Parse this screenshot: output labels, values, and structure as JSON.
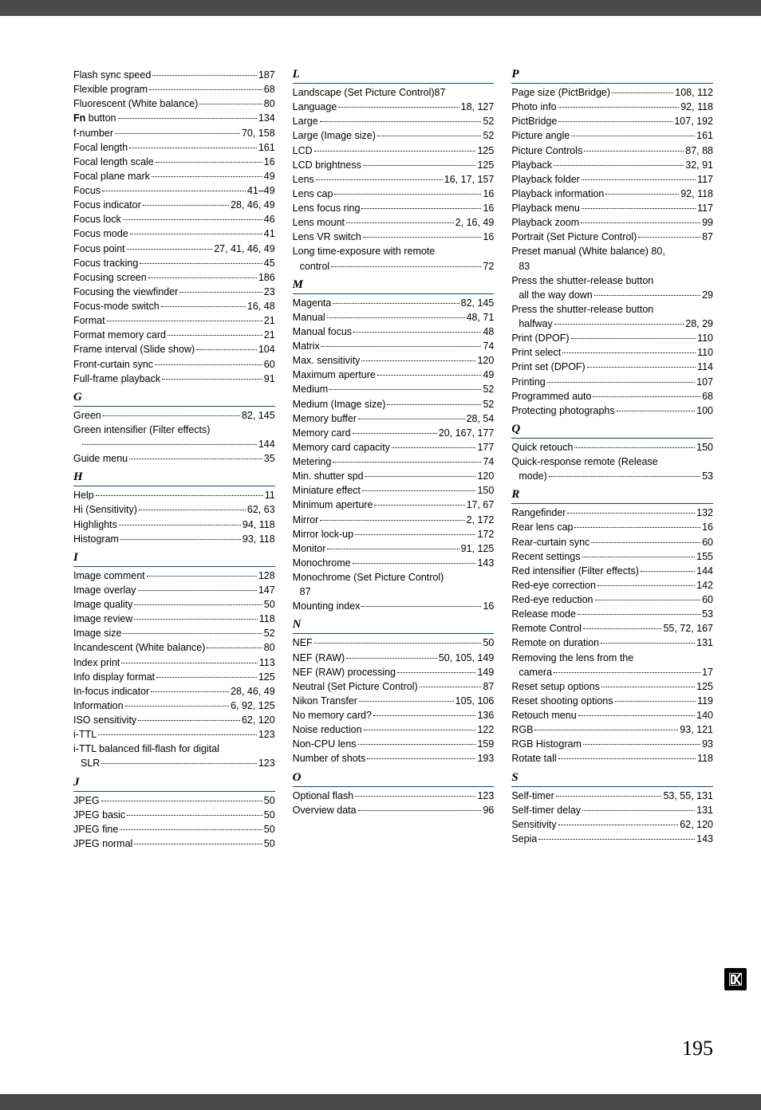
{
  "page_number": "195",
  "columns": [
    {
      "groups": [
        {
          "header": null,
          "entries": [
            {
              "l": "Flash sync speed",
              "p": "187"
            },
            {
              "l": "Flexible program",
              "p": "68"
            },
            {
              "l": "Fluorescent (White balance)",
              "p": "80"
            },
            {
              "l": "Fn button",
              "p": "134",
              "bold": "Fn"
            },
            {
              "l": "f-number",
              "p": "70, 158"
            },
            {
              "l": "Focal length",
              "p": "161"
            },
            {
              "l": "Focal length scale",
              "p": "16"
            },
            {
              "l": "Focal plane mark",
              "p": "49"
            },
            {
              "l": "Focus",
              "p": "41–49"
            },
            {
              "l": "Focus indicator",
              "p": "28, 46, 49"
            },
            {
              "l": "Focus lock",
              "p": "46"
            },
            {
              "l": "Focus mode",
              "p": "41"
            },
            {
              "l": "Focus point",
              "p": "27, 41, 46, 49"
            },
            {
              "l": "Focus tracking",
              "p": "45"
            },
            {
              "l": "Focusing screen",
              "p": "186"
            },
            {
              "l": "Focusing the viewfinder",
              "p": "23"
            },
            {
              "l": "Focus-mode switch",
              "p": "16, 48"
            },
            {
              "l": "Format",
              "p": "21"
            },
            {
              "l": "Format memory card",
              "p": "21"
            },
            {
              "l": "Frame interval (Slide show)",
              "p": "104"
            },
            {
              "l": "Front-curtain sync",
              "p": "60"
            },
            {
              "l": "Full-frame playback",
              "p": "91"
            }
          ]
        },
        {
          "header": "G",
          "entries": [
            {
              "l": "Green",
              "p": "82, 145"
            },
            {
              "l": "Green intensifier (Filter effects)",
              "p": "144",
              "wrap": true
            },
            {
              "l": "Guide menu",
              "p": "35"
            }
          ]
        },
        {
          "header": "H",
          "entries": [
            {
              "l": "Help",
              "p": "11"
            },
            {
              "l": "Hi (Sensitivity)",
              "p": "62, 63"
            },
            {
              "l": "Highlights",
              "p": "94, 118"
            },
            {
              "l": "Histogram",
              "p": "93, 118"
            }
          ]
        },
        {
          "header": "I",
          "entries": [
            {
              "l": "Image comment",
              "p": "128"
            },
            {
              "l": "Image overlay",
              "p": "147"
            },
            {
              "l": "Image quality",
              "p": "50"
            },
            {
              "l": "Image review",
              "p": "118"
            },
            {
              "l": "Image size",
              "p": "52"
            },
            {
              "l": "Incandescent (White balance)",
              "p": "80"
            },
            {
              "l": "Index print",
              "p": "113"
            },
            {
              "l": "Info display format",
              "p": "125"
            },
            {
              "l": "In-focus indicator",
              "p": "28, 46, 49"
            },
            {
              "l": "Information",
              "p": "6, 92, 125"
            },
            {
              "l": "ISO sensitivity",
              "p": "62, 120"
            },
            {
              "l": "i-TTL",
              "p": "123"
            },
            {
              "l": "i-TTL balanced fill-flash for digital SLR",
              "p": "123",
              "wrap": true,
              "contLabel": "SLR"
            }
          ]
        },
        {
          "header": "J",
          "entries": [
            {
              "l": "JPEG",
              "p": "50"
            },
            {
              "l": "JPEG basic",
              "p": "50"
            },
            {
              "l": "JPEG fine",
              "p": "50"
            },
            {
              "l": "JPEG normal",
              "p": "50"
            }
          ]
        }
      ]
    },
    {
      "groups": [
        {
          "header": "L",
          "entries": [
            {
              "l": "Landscape (Set Picture Control)",
              "p": "87",
              "nodots": true
            },
            {
              "l": "Language",
              "p": "18, 127"
            },
            {
              "l": "Large",
              "p": "52"
            },
            {
              "l": "Large (Image size)",
              "p": "52"
            },
            {
              "l": "LCD",
              "p": "125"
            },
            {
              "l": "LCD brightness",
              "p": "125"
            },
            {
              "l": "Lens",
              "p": "16, 17, 157"
            },
            {
              "l": "Lens cap",
              "p": "16"
            },
            {
              "l": "Lens focus ring",
              "p": "16"
            },
            {
              "l": "Lens mount",
              "p": "2, 16, 49"
            },
            {
              "l": "Lens VR switch",
              "p": "16"
            },
            {
              "l": "Long time-exposure with remote control",
              "p": "72",
              "wrap": true,
              "contLabel": "control"
            }
          ]
        },
        {
          "header": "M",
          "entries": [
            {
              "l": "Magenta",
              "p": "82, 145"
            },
            {
              "l": "Manual",
              "p": "48, 71"
            },
            {
              "l": "Manual focus",
              "p": "48"
            },
            {
              "l": "Matrix",
              "p": "74"
            },
            {
              "l": "Max. sensitivity",
              "p": "120"
            },
            {
              "l": "Maximum aperture",
              "p": "49"
            },
            {
              "l": "Medium",
              "p": "52"
            },
            {
              "l": "Medium (Image size)",
              "p": "52"
            },
            {
              "l": "Memory buffer",
              "p": "28, 54"
            },
            {
              "l": "Memory card",
              "p": "20, 167, 177"
            },
            {
              "l": "Memory card capacity",
              "p": "177"
            },
            {
              "l": "Metering",
              "p": "74"
            },
            {
              "l": "Min. shutter spd",
              "p": "120"
            },
            {
              "l": "Miniature effect",
              "p": "150"
            },
            {
              "l": "Minimum aperture",
              "p": "17, 67"
            },
            {
              "l": "Mirror",
              "p": "2, 172"
            },
            {
              "l": "Mirror lock-up",
              "p": "172"
            },
            {
              "l": "Monitor",
              "p": "91, 125"
            },
            {
              "l": "Monochrome",
              "p": "143"
            },
            {
              "l": "Monochrome (Set Picture Control) 87",
              "nodots": true,
              "wrap": true,
              "contLabel": "87",
              "noPageLine2": true
            },
            {
              "l": "Mounting index",
              "p": "16"
            }
          ]
        },
        {
          "header": "N",
          "entries": [
            {
              "l": "NEF",
              "p": "50"
            },
            {
              "l": "NEF (RAW)",
              "p": "50, 105, 149"
            },
            {
              "l": "NEF (RAW) processing",
              "p": "149"
            },
            {
              "l": "Neutral (Set Picture Control)",
              "p": "87"
            },
            {
              "l": "Nikon Transfer",
              "p": "105, 106"
            },
            {
              "l": "No memory card?",
              "p": "136"
            },
            {
              "l": "Noise reduction",
              "p": "122"
            },
            {
              "l": "Non-CPU lens",
              "p": "159"
            },
            {
              "l": "Number of shots",
              "p": "193"
            }
          ]
        },
        {
          "header": "O",
          "entries": [
            {
              "l": "Optional flash",
              "p": "123"
            },
            {
              "l": "Overview data",
              "p": "96"
            }
          ]
        }
      ]
    },
    {
      "groups": [
        {
          "header": "P",
          "entries": [
            {
              "l": "Page size (PictBridge)",
              "p": "108, 112"
            },
            {
              "l": "Photo info",
              "p": "92, 118"
            },
            {
              "l": "PictBridge",
              "p": "107, 192"
            },
            {
              "l": "Picture angle",
              "p": "161"
            },
            {
              "l": "Picture Controls",
              "p": "87, 88"
            },
            {
              "l": "Playback",
              "p": "32, 91"
            },
            {
              "l": "Playback folder",
              "p": "117"
            },
            {
              "l": "Playback information",
              "p": "92, 118"
            },
            {
              "l": "Playback menu",
              "p": "117"
            },
            {
              "l": "Playback zoom",
              "p": "99"
            },
            {
              "l": "Portrait (Set Picture Control)",
              "p": "87"
            },
            {
              "l": "Preset manual (White balance)",
              "p": "80, 83",
              "wrap": true,
              "firstLine": "Preset manual (White balance) 80,",
              "contLabel": "83",
              "noPageLine2": true
            },
            {
              "l": "Press the shutter-release button all the way down",
              "p": "29",
              "wrap": true,
              "firstLine": "Press the shutter-release button",
              "contLabel": "all the way down"
            },
            {
              "l": "Press the shutter-release button halfway",
              "p": "28, 29",
              "wrap": true,
              "firstLine": "Press the shutter-release button",
              "contLabel": "halfway"
            },
            {
              "l": "Print (DPOF)",
              "p": "110"
            },
            {
              "l": "Print select",
              "p": "110"
            },
            {
              "l": "Print set (DPOF)",
              "p": "114"
            },
            {
              "l": "Printing",
              "p": "107"
            },
            {
              "l": "Programmed auto",
              "p": "68"
            },
            {
              "l": "Protecting photographs",
              "p": "100"
            }
          ]
        },
        {
          "header": "Q",
          "entries": [
            {
              "l": "Quick retouch",
              "p": "150"
            },
            {
              "l": "Quick-response remote (Release mode)",
              "p": "53",
              "wrap": true,
              "firstLine": "Quick-response remote (Release",
              "contLabel": "mode)"
            }
          ]
        },
        {
          "header": "R",
          "entries": [
            {
              "l": "Rangefinder",
              "p": "132"
            },
            {
              "l": "Rear lens cap",
              "p": "16"
            },
            {
              "l": "Rear-curtain sync",
              "p": "60"
            },
            {
              "l": "Recent settings",
              "p": "155"
            },
            {
              "l": "Red intensifier (Filter effects)",
              "p": "144"
            },
            {
              "l": "Red-eye correction",
              "p": "142"
            },
            {
              "l": "Red-eye reduction",
              "p": "60"
            },
            {
              "l": "Release mode",
              "p": "53"
            },
            {
              "l": "Remote Control",
              "p": "55, 72, 167"
            },
            {
              "l": "Remote on duration",
              "p": "131"
            },
            {
              "l": "Removing the lens from the camera",
              "p": "17",
              "wrap": true,
              "firstLine": "Removing the lens from the",
              "contLabel": "camera"
            },
            {
              "l": "Reset setup options",
              "p": "125"
            },
            {
              "l": "Reset shooting options",
              "p": "119"
            },
            {
              "l": "Retouch menu",
              "p": "140"
            },
            {
              "l": "RGB",
              "p": "93, 121"
            },
            {
              "l": "RGB Histogram",
              "p": "93"
            },
            {
              "l": "Rotate tall",
              "p": "118"
            }
          ]
        },
        {
          "header": "S",
          "entries": [
            {
              "l": "Self-timer",
              "p": "53, 55, 131"
            },
            {
              "l": "Self-timer delay",
              "p": "131"
            },
            {
              "l": "Sensitivity",
              "p": "62, 120"
            },
            {
              "l": "Sepia",
              "p": "143"
            }
          ]
        }
      ]
    }
  ]
}
